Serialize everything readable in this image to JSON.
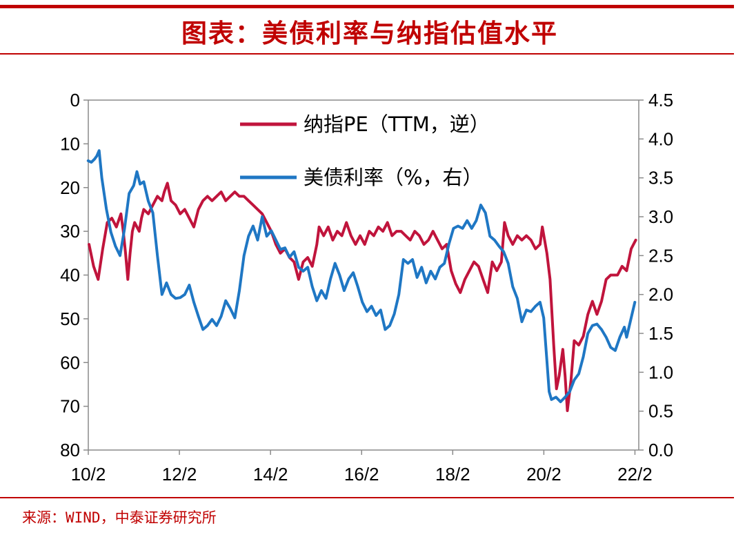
{
  "header": {
    "title": "图表：美债利率与纳指估值水平"
  },
  "footer": {
    "source": "来源：WIND，中泰证券研究所"
  },
  "chart_data": {
    "type": "line",
    "title": "图表：美债利率与纳指估值水平",
    "source": "来源：WIND，中泰证券研究所",
    "x_range": [
      2010.083,
      2022.167
    ],
    "x_ticks": [
      {
        "x": 2010.083,
        "label": "10/2"
      },
      {
        "x": 2012.083,
        "label": "12/2"
      },
      {
        "x": 2014.083,
        "label": "14/2"
      },
      {
        "x": 2016.083,
        "label": "16/2"
      },
      {
        "x": 2018.083,
        "label": "18/2"
      },
      {
        "x": 2020.083,
        "label": "20/2"
      },
      {
        "x": 2022.083,
        "label": "22/2"
      }
    ],
    "y_left": {
      "ticks": [
        "0",
        "10",
        "20",
        "30",
        "40",
        "50",
        "60",
        "70",
        "80"
      ],
      "range": [
        0,
        80
      ],
      "inverted": true
    },
    "y_right": {
      "ticks": [
        "4.5",
        "4.0",
        "3.5",
        "3.0",
        "2.5",
        "2.0",
        "1.5",
        "1.0",
        "0.5",
        "0.0"
      ],
      "range": [
        0,
        4.5
      ]
    },
    "legend": {
      "placement": "top-center"
    },
    "series": [
      {
        "name": "纳指PE（TTM，逆）",
        "axis": "left",
        "color": "#c0143c",
        "points": [
          [
            2010.1,
            33
          ],
          [
            2010.2,
            38
          ],
          [
            2010.3,
            41
          ],
          [
            2010.4,
            34
          ],
          [
            2010.5,
            28
          ],
          [
            2010.6,
            27
          ],
          [
            2010.7,
            29
          ],
          [
            2010.8,
            26
          ],
          [
            2010.85,
            30
          ],
          [
            2010.9,
            35
          ],
          [
            2010.95,
            41
          ],
          [
            2011.0,
            35
          ],
          [
            2011.05,
            30
          ],
          [
            2011.1,
            28
          ],
          [
            2011.15,
            29
          ],
          [
            2011.2,
            30
          ],
          [
            2011.25,
            27
          ],
          [
            2011.3,
            25
          ],
          [
            2011.4,
            26
          ],
          [
            2011.5,
            24
          ],
          [
            2011.6,
            22
          ],
          [
            2011.7,
            23
          ],
          [
            2011.75,
            21
          ],
          [
            2011.82,
            19
          ],
          [
            2011.9,
            23
          ],
          [
            2012.0,
            24
          ],
          [
            2012.1,
            26
          ],
          [
            2012.2,
            25
          ],
          [
            2012.3,
            27
          ],
          [
            2012.4,
            29
          ],
          [
            2012.5,
            25
          ],
          [
            2012.6,
            23
          ],
          [
            2012.7,
            22
          ],
          [
            2012.8,
            23
          ],
          [
            2012.9,
            22
          ],
          [
            2013.0,
            21
          ],
          [
            2013.1,
            23
          ],
          [
            2013.2,
            22
          ],
          [
            2013.3,
            21
          ],
          [
            2013.4,
            22
          ],
          [
            2013.5,
            22
          ],
          [
            2013.6,
            23
          ],
          [
            2013.7,
            24
          ],
          [
            2013.8,
            25
          ],
          [
            2013.9,
            26
          ],
          [
            2014.0,
            28
          ],
          [
            2014.1,
            30
          ],
          [
            2014.2,
            33
          ],
          [
            2014.3,
            35
          ],
          [
            2014.4,
            34
          ],
          [
            2014.5,
            36
          ],
          [
            2014.6,
            37
          ],
          [
            2014.7,
            41
          ],
          [
            2014.75,
            39
          ],
          [
            2014.8,
            37
          ],
          [
            2014.9,
            36
          ],
          [
            2015.0,
            38
          ],
          [
            2015.1,
            33
          ],
          [
            2015.15,
            29
          ],
          [
            2015.25,
            31
          ],
          [
            2015.35,
            29
          ],
          [
            2015.45,
            32
          ],
          [
            2015.55,
            30
          ],
          [
            2015.65,
            31
          ],
          [
            2015.75,
            28
          ],
          [
            2015.85,
            31
          ],
          [
            2015.95,
            33
          ],
          [
            2016.05,
            31
          ],
          [
            2016.15,
            33
          ],
          [
            2016.25,
            30
          ],
          [
            2016.35,
            31
          ],
          [
            2016.45,
            29
          ],
          [
            2016.55,
            30
          ],
          [
            2016.65,
            28
          ],
          [
            2016.75,
            31
          ],
          [
            2016.85,
            30
          ],
          [
            2016.95,
            30
          ],
          [
            2017.05,
            31
          ],
          [
            2017.15,
            32
          ],
          [
            2017.25,
            30
          ],
          [
            2017.35,
            31
          ],
          [
            2017.45,
            33
          ],
          [
            2017.55,
            32
          ],
          [
            2017.65,
            30
          ],
          [
            2017.75,
            32
          ],
          [
            2017.85,
            34
          ],
          [
            2017.95,
            33
          ],
          [
            2018.05,
            39
          ],
          [
            2018.15,
            42
          ],
          [
            2018.25,
            44
          ],
          [
            2018.35,
            41
          ],
          [
            2018.45,
            39
          ],
          [
            2018.55,
            37
          ],
          [
            2018.65,
            38
          ],
          [
            2018.75,
            41
          ],
          [
            2018.85,
            44
          ],
          [
            2018.95,
            37
          ],
          [
            2019.05,
            39
          ],
          [
            2019.15,
            37
          ],
          [
            2019.22,
            28
          ],
          [
            2019.3,
            31
          ],
          [
            2019.4,
            33
          ],
          [
            2019.5,
            31
          ],
          [
            2019.6,
            32
          ],
          [
            2019.7,
            31
          ],
          [
            2019.8,
            32
          ],
          [
            2019.9,
            34
          ],
          [
            2020.0,
            33
          ],
          [
            2020.05,
            29
          ],
          [
            2020.1,
            32
          ],
          [
            2020.15,
            35
          ],
          [
            2020.22,
            41
          ],
          [
            2020.3,
            56
          ],
          [
            2020.36,
            66
          ],
          [
            2020.42,
            63
          ],
          [
            2020.5,
            57
          ],
          [
            2020.55,
            63
          ],
          [
            2020.6,
            71
          ],
          [
            2020.68,
            64
          ],
          [
            2020.75,
            55
          ],
          [
            2020.85,
            56
          ],
          [
            2020.95,
            54
          ],
          [
            2021.05,
            49
          ],
          [
            2021.15,
            46
          ],
          [
            2021.25,
            49
          ],
          [
            2021.35,
            46
          ],
          [
            2021.45,
            41
          ],
          [
            2021.55,
            40
          ],
          [
            2021.7,
            40
          ],
          [
            2021.8,
            38
          ],
          [
            2021.9,
            39
          ],
          [
            2022.0,
            34
          ],
          [
            2022.1,
            32
          ]
        ]
      },
      {
        "name": "美债利率（%，右）",
        "axis": "right",
        "color": "#1f77c4",
        "points": [
          [
            2010.08,
            3.72
          ],
          [
            2010.15,
            3.7
          ],
          [
            2010.22,
            3.74
          ],
          [
            2010.27,
            3.78
          ],
          [
            2010.32,
            3.85
          ],
          [
            2010.38,
            3.5
          ],
          [
            2010.48,
            3.1
          ],
          [
            2010.58,
            2.8
          ],
          [
            2010.68,
            2.62
          ],
          [
            2010.78,
            2.5
          ],
          [
            2010.88,
            2.85
          ],
          [
            2010.98,
            3.3
          ],
          [
            2011.08,
            3.4
          ],
          [
            2011.15,
            3.58
          ],
          [
            2011.22,
            3.42
          ],
          [
            2011.3,
            3.45
          ],
          [
            2011.4,
            3.2
          ],
          [
            2011.5,
            3.05
          ],
          [
            2011.6,
            2.5
          ],
          [
            2011.7,
            2.0
          ],
          [
            2011.8,
            2.15
          ],
          [
            2011.9,
            2.0
          ],
          [
            2012.0,
            1.95
          ],
          [
            2012.1,
            1.96
          ],
          [
            2012.2,
            2.0
          ],
          [
            2012.3,
            2.12
          ],
          [
            2012.4,
            1.9
          ],
          [
            2012.5,
            1.72
          ],
          [
            2012.6,
            1.55
          ],
          [
            2012.7,
            1.6
          ],
          [
            2012.8,
            1.68
          ],
          [
            2012.9,
            1.6
          ],
          [
            2013.0,
            1.72
          ],
          [
            2013.1,
            1.92
          ],
          [
            2013.2,
            1.82
          ],
          [
            2013.3,
            1.7
          ],
          [
            2013.4,
            2.05
          ],
          [
            2013.5,
            2.5
          ],
          [
            2013.6,
            2.75
          ],
          [
            2013.7,
            2.88
          ],
          [
            2013.8,
            2.7
          ],
          [
            2013.9,
            3.0
          ],
          [
            2014.0,
            2.75
          ],
          [
            2014.1,
            2.82
          ],
          [
            2014.2,
            2.7
          ],
          [
            2014.3,
            2.58
          ],
          [
            2014.4,
            2.6
          ],
          [
            2014.5,
            2.48
          ],
          [
            2014.6,
            2.55
          ],
          [
            2014.7,
            2.35
          ],
          [
            2014.8,
            2.3
          ],
          [
            2014.9,
            2.35
          ],
          [
            2015.0,
            2.1
          ],
          [
            2015.1,
            1.92
          ],
          [
            2015.2,
            2.05
          ],
          [
            2015.3,
            1.95
          ],
          [
            2015.4,
            2.2
          ],
          [
            2015.5,
            2.4
          ],
          [
            2015.6,
            2.25
          ],
          [
            2015.7,
            2.05
          ],
          [
            2015.8,
            2.2
          ],
          [
            2015.9,
            2.28
          ],
          [
            2016.0,
            2.1
          ],
          [
            2016.1,
            1.9
          ],
          [
            2016.2,
            1.78
          ],
          [
            2016.3,
            1.85
          ],
          [
            2016.4,
            1.73
          ],
          [
            2016.5,
            1.8
          ],
          [
            2016.6,
            1.55
          ],
          [
            2016.7,
            1.6
          ],
          [
            2016.8,
            1.75
          ],
          [
            2016.9,
            2.0
          ],
          [
            2017.0,
            2.45
          ],
          [
            2017.1,
            2.4
          ],
          [
            2017.2,
            2.45
          ],
          [
            2017.3,
            2.22
          ],
          [
            2017.4,
            2.35
          ],
          [
            2017.5,
            2.15
          ],
          [
            2017.6,
            2.3
          ],
          [
            2017.7,
            2.2
          ],
          [
            2017.8,
            2.35
          ],
          [
            2017.9,
            2.4
          ],
          [
            2018.0,
            2.65
          ],
          [
            2018.1,
            2.85
          ],
          [
            2018.2,
            2.88
          ],
          [
            2018.3,
            2.85
          ],
          [
            2018.4,
            2.95
          ],
          [
            2018.5,
            2.85
          ],
          [
            2018.6,
            2.95
          ],
          [
            2018.7,
            3.15
          ],
          [
            2018.8,
            3.05
          ],
          [
            2018.9,
            2.75
          ],
          [
            2019.0,
            2.7
          ],
          [
            2019.1,
            2.62
          ],
          [
            2019.2,
            2.55
          ],
          [
            2019.3,
            2.4
          ],
          [
            2019.4,
            2.1
          ],
          [
            2019.5,
            1.95
          ],
          [
            2019.6,
            1.65
          ],
          [
            2019.7,
            1.8
          ],
          [
            2019.8,
            1.78
          ],
          [
            2019.9,
            1.85
          ],
          [
            2020.0,
            1.9
          ],
          [
            2020.08,
            1.7
          ],
          [
            2020.15,
            1.15
          ],
          [
            2020.2,
            0.75
          ],
          [
            2020.25,
            0.65
          ],
          [
            2020.35,
            0.68
          ],
          [
            2020.45,
            0.62
          ],
          [
            2020.55,
            0.68
          ],
          [
            2020.65,
            0.75
          ],
          [
            2020.75,
            0.9
          ],
          [
            2020.85,
            0.98
          ],
          [
            2020.95,
            1.2
          ],
          [
            2021.05,
            1.5
          ],
          [
            2021.15,
            1.6
          ],
          [
            2021.25,
            1.62
          ],
          [
            2021.35,
            1.55
          ],
          [
            2021.45,
            1.45
          ],
          [
            2021.55,
            1.32
          ],
          [
            2021.65,
            1.28
          ],
          [
            2021.75,
            1.45
          ],
          [
            2021.85,
            1.58
          ],
          [
            2021.9,
            1.45
          ],
          [
            2022.0,
            1.7
          ],
          [
            2022.08,
            1.9
          ]
        ]
      }
    ]
  }
}
